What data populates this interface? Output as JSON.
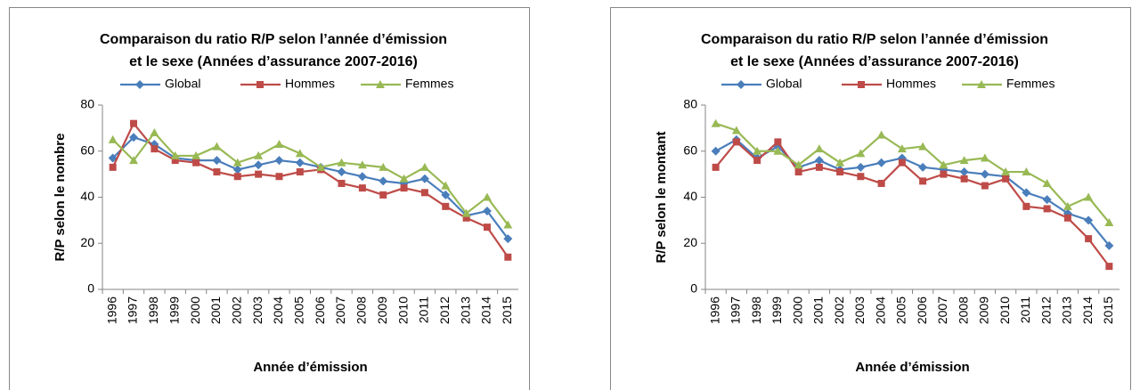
{
  "chart_data": [
    {
      "type": "line",
      "title": "Comparaison du ratio R/P selon l’année d’émission",
      "subtitle": "et le sexe (Années d’assurance 2007-2016)",
      "y_label": "R/P selon le nombre",
      "x_label": "Année d’émission",
      "categories": [
        "1996",
        "1997",
        "1998",
        "1999",
        "2000",
        "2001",
        "2002",
        "2003",
        "2004",
        "2005",
        "2006",
        "2007",
        "2008",
        "2009",
        "2010",
        "2011",
        "2012",
        "2013",
        "2014",
        "2015"
      ],
      "series": [
        {
          "name": "Global",
          "color": "#4a7ebb",
          "values": [
            57,
            66,
            63,
            57,
            56,
            56,
            52,
            54,
            56,
            55,
            53,
            51,
            49,
            47,
            46,
            48,
            41,
            32,
            34,
            22
          ]
        },
        {
          "name": "Hommes",
          "color": "#be4b48",
          "values": [
            53,
            72,
            61,
            56,
            55,
            51,
            49,
            50,
            49,
            51,
            52,
            46,
            44,
            41,
            44,
            42,
            36,
            31,
            27,
            14
          ]
        },
        {
          "name": "Femmes",
          "color": "#98b954",
          "values": [
            65,
            56,
            68,
            58,
            58,
            62,
            55,
            58,
            63,
            59,
            53,
            55,
            54,
            53,
            48,
            53,
            45,
            33,
            40,
            28
          ]
        }
      ],
      "ylim": [
        0,
        80
      ],
      "yticks": [
        0,
        20,
        40,
        60,
        80
      ],
      "grid": false,
      "legend": "top"
    },
    {
      "type": "line",
      "title": "Comparaison du ratio R/P selon l’année d’émission",
      "subtitle": "et le sexe (Années d’assurance 2007-2016)",
      "y_label": "R/P selon le montant",
      "x_label": "Année d’émission",
      "categories": [
        "1996",
        "1997",
        "1998",
        "1999",
        "2000",
        "2001",
        "2002",
        "2003",
        "2004",
        "2005",
        "2006",
        "2007",
        "2008",
        "2009",
        "2010",
        "2011",
        "2012",
        "2013",
        "2014",
        "2015"
      ],
      "series": [
        {
          "name": "Global",
          "color": "#4a7ebb",
          "values": [
            60,
            65,
            57,
            62,
            53,
            56,
            52,
            53,
            55,
            57,
            53,
            52,
            51,
            50,
            49,
            42,
            39,
            33,
            30,
            19
          ]
        },
        {
          "name": "Hommes",
          "color": "#be4b48",
          "values": [
            53,
            64,
            56,
            64,
            51,
            53,
            51,
            49,
            46,
            55,
            47,
            50,
            48,
            45,
            48,
            36,
            35,
            31,
            22,
            10
          ]
        },
        {
          "name": "Femmes",
          "color": "#98b954",
          "values": [
            72,
            69,
            60,
            60,
            54,
            61,
            55,
            59,
            67,
            61,
            62,
            54,
            56,
            57,
            51,
            51,
            46,
            36,
            40,
            29
          ]
        }
      ],
      "ylim": [
        0,
        80
      ],
      "yticks": [
        0,
        20,
        40,
        60,
        80
      ],
      "grid": false,
      "legend": "top"
    }
  ]
}
